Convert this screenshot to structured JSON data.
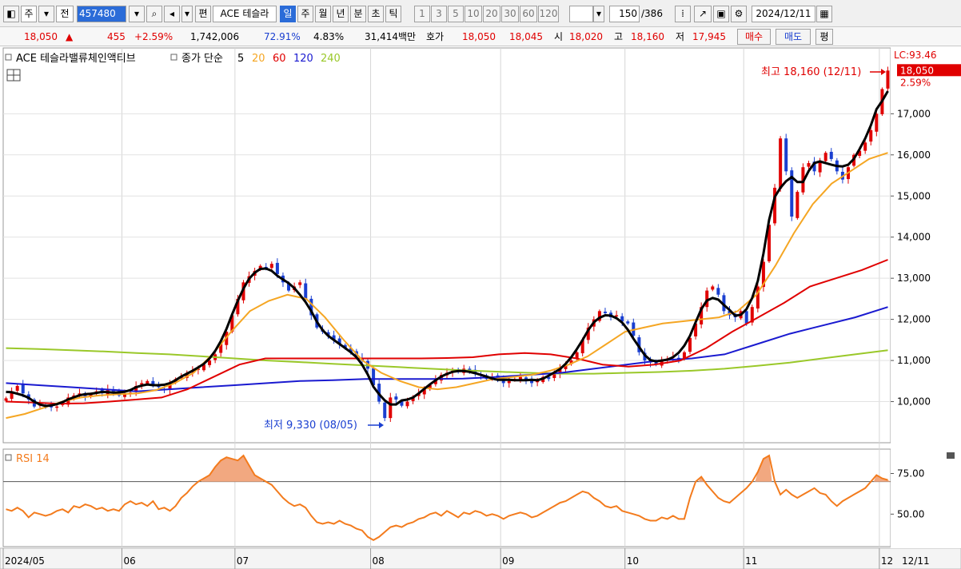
{
  "toolbar": {
    "market_label": "주",
    "type_label": "전",
    "code": "457480",
    "name": "ACE 테슬라",
    "edit_label": "편",
    "periods": [
      "일",
      "주",
      "월",
      "년",
      "분",
      "초",
      "틱"
    ],
    "active_period": "일",
    "intervals": [
      "1",
      "3",
      "5",
      "10",
      "20",
      "30",
      "60",
      "120"
    ],
    "count_value": "150",
    "count_total": "/386",
    "date": "2024/12/11"
  },
  "quote": {
    "price": "18,050",
    "change_arrow": "▲",
    "change": "455",
    "change_pct": "+2.59%",
    "volume": "1,742,006",
    "vol_ratio": "72.91%",
    "turnover": "4.83%",
    "amount": "31,414백만",
    "ask_label": "호가",
    "ask": "18,050",
    "bid": "18,045",
    "open_label": "시",
    "open": "18,020",
    "high_label": "고",
    "high": "18,160",
    "low_label": "저",
    "low": "17,945",
    "buy_label": "매수",
    "sell_label": "매도",
    "eval_label": "평"
  },
  "chart_data": {
    "type": "candlestick",
    "title": "ACE 테슬라밸류체인액티브",
    "legend_prefix": "종가 단순",
    "ma_periods": [
      "5",
      "20",
      "60",
      "120",
      "240"
    ],
    "ma_colors": [
      "#000000",
      "#f5a623",
      "#e00000",
      "#1a1ad0",
      "#9ac829"
    ],
    "ylim": [
      9000,
      18600
    ],
    "y_ticks": [
      10000,
      11000,
      12000,
      13000,
      14000,
      15000,
      16000,
      17000
    ],
    "y_tick_labels": [
      "10,000",
      "11,000",
      "12,000",
      "13,000",
      "14,000",
      "15,000",
      "16,000",
      "17,000"
    ],
    "lc_label": "LC:93.46",
    "last_price_label": "18,050",
    "last_pct_label": "2.59%",
    "last_price": 18050,
    "high_annotation": "최고 18,160 (12/11)",
    "low_annotation": "최저 9,330 (08/05)",
    "x_labels": [
      "2024/05",
      "06",
      "07",
      "08",
      "09",
      "10",
      "11",
      "12"
    ],
    "x_label_index": [
      0,
      21,
      41,
      65,
      88,
      110,
      131,
      155
    ],
    "last_date_label": "12/11",
    "closes": [
      10080,
      10250,
      10380,
      10200,
      10050,
      9880,
      9950,
      9900,
      9860,
      9880,
      9950,
      10100,
      10150,
      10200,
      10130,
      10180,
      10250,
      10200,
      10300,
      10250,
      10150,
      10200,
      10220,
      10380,
      10450,
      10500,
      10400,
      10350,
      10300,
      10450,
      10550,
      10600,
      10700,
      10750,
      10800,
      10900,
      11000,
      11150,
      11400,
      11700,
      12100,
      12500,
      12900,
      13050,
      13180,
      13300,
      13250,
      13350,
      13100,
      12900,
      12700,
      12800,
      12900,
      12500,
      12100,
      11800,
      11700,
      11600,
      11500,
      11400,
      11300,
      11200,
      11100,
      11000,
      10800,
      10400,
      10000,
      9600,
      10100,
      10050,
      9900,
      10000,
      10100,
      10200,
      10300,
      10400,
      10550,
      10650,
      10700,
      10750,
      10720,
      10800,
      10750,
      10700,
      10650,
      10550,
      10600,
      10550,
      10450,
      10500,
      10550,
      10600,
      10500,
      10450,
      10500,
      10600,
      10550,
      10700,
      10800,
      10900,
      11000,
      11200,
      11500,
      11800,
      12000,
      12200,
      12150,
      12050,
      12100,
      11950,
      11900,
      11600,
      11200,
      11000,
      10950,
      10900,
      11000,
      11050,
      11100,
      11050,
      11200,
      11550,
      11900,
      12300,
      12700,
      12800,
      12600,
      12200,
      12100,
      12050,
      12200,
      11900,
      12300,
      12800,
      13400,
      14300,
      15200,
      16400,
      15600,
      14500,
      15100,
      15700,
      15800,
      15600,
      15850,
      16050,
      15900,
      15600,
      15400,
      15700,
      16000,
      16100,
      16300,
      16600,
      17000,
      17600,
      18050
    ],
    "ma_lines": {
      "ma20": {
        "start_index": 0,
        "values": [
          9600,
          9700,
          9850,
          10000,
          10100,
          10150,
          10180,
          10200,
          10280,
          10450,
          10700,
          11150,
          11700,
          12200,
          12450,
          12600,
          12500,
          12050,
          11500,
          11000,
          10700,
          10500,
          10350,
          10300,
          10350,
          10450,
          10550,
          10600,
          10650,
          10750,
          10900,
          11100,
          11400,
          11700,
          11800,
          11900,
          11950,
          12000,
          12050,
          12200,
          12600,
          13300,
          14100,
          14800,
          15300,
          15600,
          15900,
          16050
        ]
      },
      "ma60": {
        "start_index": 0,
        "values": [
          10000,
          9980,
          9950,
          9960,
          10000,
          10050,
          10100,
          10300,
          10600,
          10900,
          11050,
          11050,
          11050,
          11050,
          11050,
          11050,
          11050,
          11060,
          11080,
          11150,
          11180,
          11150,
          11050,
          10900,
          10850,
          10900,
          11000,
          11300,
          11700,
          12050,
          12400,
          12800,
          13000,
          13200,
          13450
        ]
      },
      "ma120": {
        "start_index": 0,
        "values": [
          10450,
          10400,
          10350,
          10300,
          10250,
          10300,
          10350,
          10400,
          10450,
          10500,
          10520,
          10550,
          10550,
          10550,
          10560,
          10600,
          10650,
          10700,
          10800,
          10900,
          11000,
          11050,
          11150,
          11400,
          11650,
          11850,
          12050,
          12300
        ]
      },
      "ma240": {
        "start_index": 0,
        "values": [
          11300,
          11280,
          11250,
          11220,
          11180,
          11150,
          11100,
          11050,
          11000,
          10960,
          10920,
          10880,
          10840,
          10800,
          10760,
          10730,
          10700,
          10680,
          10680,
          10700,
          10720,
          10750,
          10800,
          10870,
          10950,
          11050,
          11150,
          11250
        ]
      }
    },
    "rsi": {
      "label": "RSI 14",
      "ylim": [
        30,
        90
      ],
      "y_ticks": [
        50,
        75
      ],
      "y_tick_labels": [
        "50.00",
        "75.00"
      ],
      "overbought": 70,
      "values": [
        53,
        52,
        54,
        52,
        48,
        51,
        50,
        49,
        50,
        52,
        53,
        51,
        55,
        54,
        56,
        55,
        53,
        54,
        52,
        53,
        52,
        56,
        58,
        56,
        57,
        55,
        58,
        53,
        54,
        52,
        55,
        60,
        63,
        67,
        70,
        72,
        74,
        79,
        83,
        85,
        84,
        83,
        86,
        80,
        74,
        72,
        70,
        68,
        64,
        60,
        57,
        55,
        56,
        54,
        49,
        45,
        44,
        45,
        44,
        46,
        44,
        43,
        41,
        40,
        36,
        34,
        36,
        39,
        42,
        43,
        42,
        44,
        45,
        47,
        48,
        50,
        51,
        49,
        52,
        50,
        48,
        51,
        50,
        52,
        51,
        49,
        50,
        49,
        47,
        49,
        50,
        51,
        50,
        48,
        49,
        51,
        53,
        55,
        57,
        58,
        60,
        62,
        64,
        63,
        60,
        58,
        55,
        54,
        55,
        52,
        51,
        50,
        49,
        47,
        46,
        46,
        48,
        47,
        49,
        47,
        47,
        60,
        70,
        73,
        68,
        64,
        60,
        58,
        57,
        60,
        63,
        66,
        70,
        76,
        84,
        86,
        70,
        62,
        65,
        62,
        60,
        62,
        64,
        66,
        63,
        62,
        58,
        55,
        58,
        60,
        62,
        64,
        66,
        70,
        74,
        72,
        71
      ]
    }
  }
}
